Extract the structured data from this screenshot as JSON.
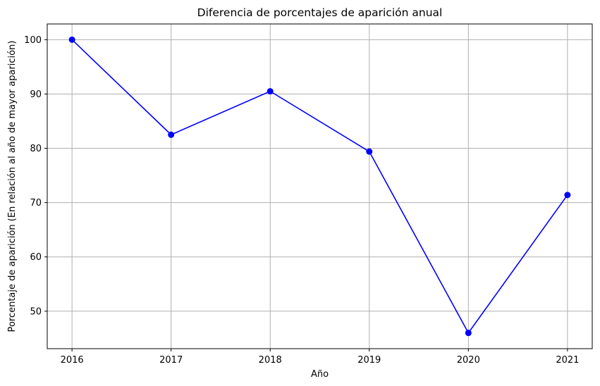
{
  "chart_data": {
    "type": "line",
    "title": "Diferencia de porcentajes de aparición anual",
    "xlabel": "Año",
    "ylabel": "Porcentaje de aparición (En relación al año de mayor aparición)",
    "x": [
      2016,
      2017,
      2018,
      2019,
      2020,
      2021
    ],
    "series": [
      {
        "values": [
          100.0,
          82.5,
          90.5,
          79.4,
          46.0,
          71.4
        ],
        "color": "#0000ff",
        "marker": "circle"
      }
    ],
    "xticks": [
      "2016",
      "2017",
      "2018",
      "2019",
      "2020",
      "2021"
    ],
    "yticks": [
      50,
      60,
      70,
      80,
      90,
      100
    ],
    "ylim": [
      43.1,
      102.9
    ],
    "xlim": [
      2015.75,
      2021.25
    ],
    "grid": true
  }
}
